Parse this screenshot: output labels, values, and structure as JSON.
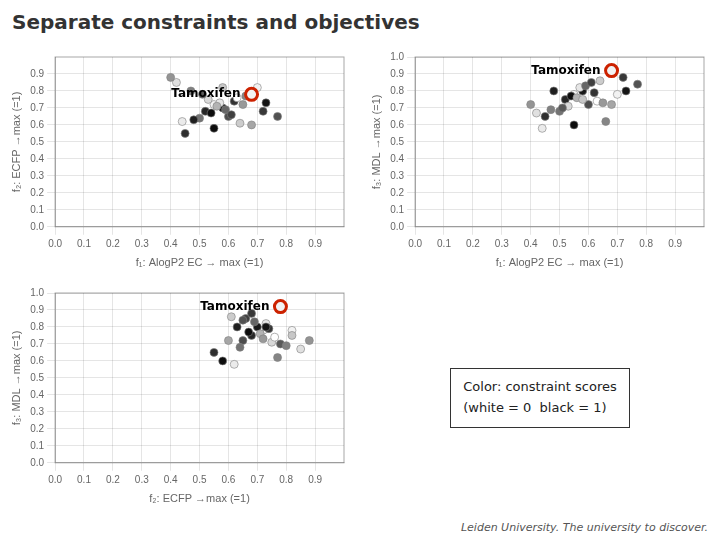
{
  "chart_data": {
    "type": "scatter3d",
    "title": "Separate constraints and objectives",
    "footer": "Leiden University. The university to discover.",
    "notes": [
      "Color: constraint scores",
      "(white = 0  black = 1)"
    ],
    "x_label": "f₁: AlogP2 EC → max (=1)",
    "y_label": "f₂: ECFP →max (=1)",
    "z_label": "f₃: MDL →max (=1)",
    "xlim": [
      0,
      1
    ],
    "ylim": [
      0,
      1
    ],
    "zlim": [
      0,
      1
    ],
    "xticks": [
      {
        "value": 0,
        "label": "0.0"
      },
      0.1,
      0.2,
      0.3,
      0.4,
      0.5,
      0.6,
      0.7,
      0.8,
      0.9
    ],
    "yticks": [
      {
        "value": 0,
        "label": "0.0"
      },
      0.1,
      0.2,
      0.3,
      0.4,
      0.5,
      0.6,
      0.7,
      0.8,
      0.9
    ],
    "zticks": [
      {
        "value": 0,
        "label": "0.0"
      },
      0.1,
      0.2,
      0.3,
      0.4,
      0.5,
      0.6,
      0.7,
      0.8,
      0.9,
      {
        "value": 1.0,
        "label": "1.0"
      }
    ],
    "grid": true,
    "series": [
      {
        "x": [
          0.55,
          0.58,
          0.52,
          0.6,
          0.57,
          0.54,
          0.62,
          0.56,
          0.59,
          0.53,
          0.61,
          0.5,
          0.63,
          0.48,
          0.65,
          0.51,
          0.64,
          0.47,
          0.55,
          0.7,
          0.45,
          0.68,
          0.42,
          0.72,
          0.66,
          0.58,
          0.73,
          0.44,
          0.77,
          0.4
        ],
        "y": [
          0.72,
          0.7,
          0.68,
          0.65,
          0.73,
          0.67,
          0.74,
          0.71,
          0.69,
          0.75,
          0.66,
          0.64,
          0.76,
          0.63,
          0.72,
          0.78,
          0.61,
          0.8,
          0.58,
          0.82,
          0.55,
          0.6,
          0.85,
          0.68,
          0.77,
          0.82,
          0.73,
          0.62,
          0.65,
          0.88
        ],
        "z": [
          0.78,
          0.8,
          0.75,
          0.72,
          0.82,
          0.77,
          0.79,
          0.76,
          0.83,
          0.71,
          0.85,
          0.68,
          0.74,
          0.8,
          0.73,
          0.7,
          0.86,
          0.69,
          0.6,
          0.78,
          0.65,
          0.72,
          0.67,
          0.88,
          0.62,
          0.75,
          0.8,
          0.58,
          0.84,
          0.72
        ],
        "constraint_scores": [
          0.05,
          0.9,
          0.85,
          0.7,
          0.1,
          0.95,
          0.8,
          0.3,
          0.6,
          0.15,
          0.75,
          0.55,
          0.0,
          0.88,
          0.4,
          0.65,
          0.2,
          0.5,
          0.95,
          0.05,
          0.82,
          0.35,
          0.12,
          0.78,
          0.48,
          0.22,
          0.92,
          0.08,
          0.68,
          0.42
        ]
      },
      {
        "name": "Tamoxifen",
        "color": "#CC2200",
        "x": [
          0.68
        ],
        "y": [
          0.78
        ],
        "z": [
          0.92
        ],
        "constraint_scores": [
          0.05
        ]
      }
    ]
  }
}
